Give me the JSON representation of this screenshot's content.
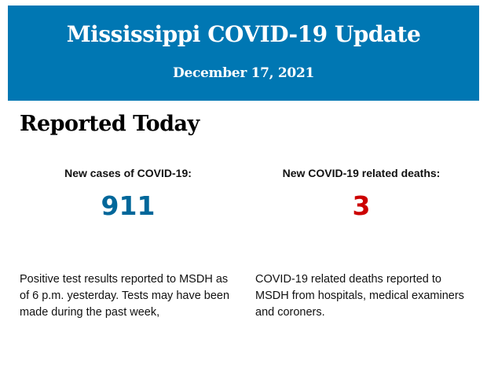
{
  "header": {
    "title": "Mississippi COVID-19 Update",
    "date": "December 17, 2021",
    "background": "#0077b3"
  },
  "section": {
    "title": "Reported Today"
  },
  "stats": [
    {
      "label": "New cases of COVID-19:",
      "value": "911",
      "color": "#00679a",
      "description": "Positive test results reported to MSDH as of 6 p.m. yesterday. Tests may have been made during the past week,"
    },
    {
      "label": "New COVID-19 related deaths:",
      "value": "3",
      "color": "#cc0000",
      "description": "COVID-19 related deaths reported to MSDH from hospitals, medical examiners and coroners."
    }
  ]
}
